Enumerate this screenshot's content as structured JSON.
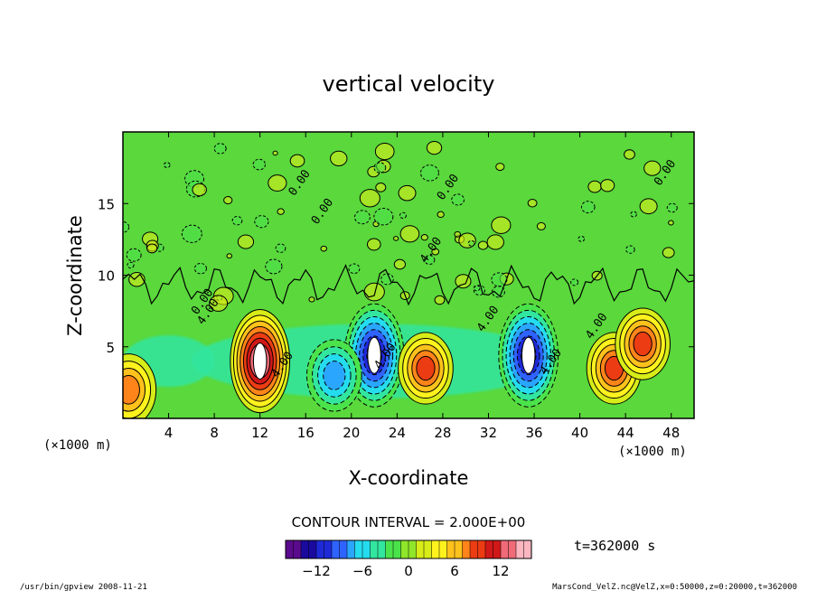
{
  "chart_data": {
    "type": "heatmap",
    "title": "vertical velocity",
    "xlabel": "X-coordinate",
    "ylabel": "Z-coordinate",
    "x_unit": "(×1000 m)",
    "y_unit": "(×1000 m)",
    "xlim": [
      0,
      50
    ],
    "ylim": [
      0,
      20
    ],
    "x_ticks": [
      4,
      8,
      12,
      16,
      20,
      24,
      28,
      32,
      36,
      40,
      44,
      48
    ],
    "y_ticks": [
      5,
      10,
      15
    ],
    "contour_interval_label": "CONTOUR INTERVAL = 2.000E+00",
    "contour_labels": [
      "0.00",
      "0.00",
      "0.00",
      "0.00",
      "0.00",
      "4.00",
      "4.00",
      "4.00",
      "4.00",
      "4.00",
      "4.00",
      "4.00"
    ],
    "colorbar": {
      "min": -16,
      "max": 16,
      "ticks": [
        -12,
        -6,
        0,
        6,
        12
      ],
      "colors": [
        "#5a0a8c",
        "#1a0a9e",
        "#1e2ad8",
        "#2f63ff",
        "#2aa6ff",
        "#25dcef",
        "#32e6a0",
        "#4be34b",
        "#8fe62a",
        "#d7ec18",
        "#fff21d",
        "#ffc21c",
        "#ff8419",
        "#ec3c13",
        "#d11818",
        "#f06a78",
        "#fbb6c0"
      ]
    },
    "features": [
      {
        "x": 12,
        "z": 4,
        "w": 15,
        "kind": "updraft-max"
      },
      {
        "x": 22,
        "z": 4.4,
        "w": -13,
        "kind": "downdraft-max"
      },
      {
        "x": 26.5,
        "z": 3.5,
        "w": 10,
        "kind": "updraft"
      },
      {
        "x": 35.5,
        "z": 4.4,
        "w": -14,
        "kind": "downdraft-max"
      },
      {
        "x": 43,
        "z": 3.5,
        "w": 10,
        "kind": "updraft"
      },
      {
        "x": 45.5,
        "z": 5.2,
        "w": 9,
        "kind": "updraft"
      },
      {
        "x": 18.5,
        "z": 3,
        "w": -7,
        "kind": "downdraft"
      },
      {
        "x": 0.5,
        "z": 2,
        "w": 8,
        "kind": "updraft"
      }
    ]
  },
  "annotations": {
    "time": "t=362000 s",
    "program": "/usr/bin/gpview  2008-11-21",
    "source": "MarsCond_VelZ.nc@VelZ,x=0:50000,z=0:20000,t=362000"
  },
  "colors": {
    "background": "#5ad83c",
    "ink": "#000000"
  }
}
